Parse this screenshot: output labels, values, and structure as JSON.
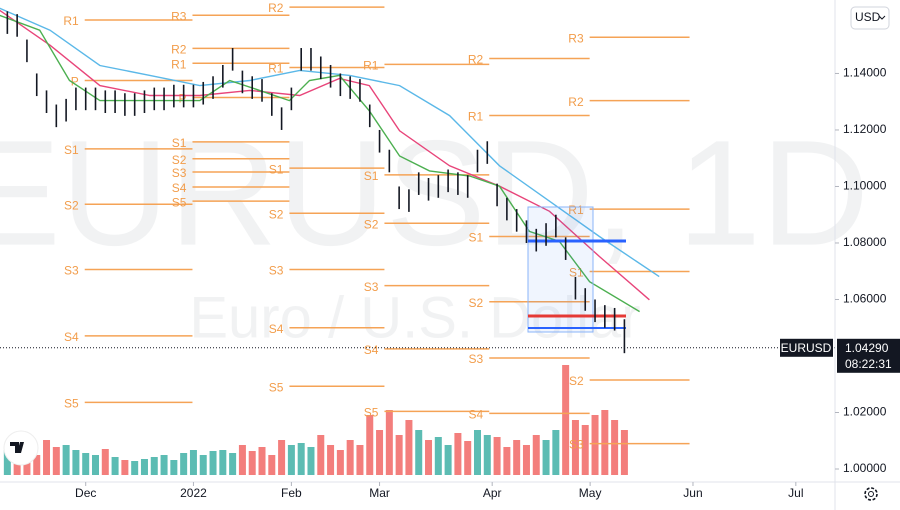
{
  "chart_data": {
    "type": "ohlc",
    "watermark": "EURUSD, 1D",
    "subtitle": "Euro / U.S. Dollar",
    "symbol": "EURUSD",
    "currency": "USD",
    "countdown": "08:22:31",
    "last_price": {
      "value": 1.0429,
      "label": "1.04290"
    },
    "bar_color": "#131722",
    "up_color": "#26a69a",
    "down_color": "#ef5350",
    "pivot_color": "#f5a356",
    "xlim": [
      -17.5,
      153
    ],
    "ylim": [
      0.9954,
      1.166
    ],
    "volume_lim": [
      0,
      120
    ],
    "xticks": [
      {
        "value": 0,
        "label": "Dec"
      },
      {
        "value": 22,
        "label": "2022"
      },
      {
        "value": 42,
        "label": "Feb"
      },
      {
        "value": 60,
        "label": "Mar"
      },
      {
        "value": 83,
        "label": "Apr"
      },
      {
        "value": 103,
        "label": "May"
      },
      {
        "value": 124,
        "label": "Jun"
      },
      {
        "value": 145,
        "label": "Jul"
      }
    ],
    "yticks": [
      {
        "value": 1.0,
        "label": "1.00000"
      },
      {
        "value": 1.02,
        "label": "1.02000"
      },
      {
        "value": 1.06,
        "label": "1.06000"
      },
      {
        "value": 1.08,
        "label": "1.08000"
      },
      {
        "value": 1.1,
        "label": "1.10000"
      },
      {
        "value": 1.12,
        "label": "1.12000"
      },
      {
        "value": 1.14,
        "label": "1.14000"
      }
    ],
    "x": [
      -16,
      -14,
      -12,
      -10,
      -8,
      -6,
      -4,
      -2,
      0,
      2,
      4,
      6,
      8,
      10,
      12,
      14,
      16,
      18,
      20,
      22,
      24,
      26,
      28,
      30,
      32,
      34,
      36,
      38,
      40,
      42,
      44,
      46,
      48,
      50,
      52,
      54,
      56,
      58,
      60,
      62,
      64,
      66,
      68,
      70,
      72,
      74,
      76,
      78,
      80,
      82,
      84,
      86,
      88,
      90,
      92,
      94,
      96,
      98,
      100,
      102,
      104,
      106,
      108,
      110
    ],
    "high": [
      1.162,
      1.161,
      1.152,
      1.14,
      1.134,
      1.129,
      1.131,
      1.135,
      1.135,
      1.135,
      1.134,
      1.134,
      1.133,
      1.133,
      1.134,
      1.135,
      1.135,
      1.136,
      1.136,
      1.136,
      1.137,
      1.139,
      1.143,
      1.149,
      1.141,
      1.139,
      1.138,
      1.133,
      1.128,
      1.135,
      1.149,
      1.149,
      1.146,
      1.143,
      1.14,
      1.139,
      1.138,
      1.129,
      1.12,
      1.113,
      1.1,
      1.099,
      1.105,
      1.103,
      1.104,
      1.106,
      1.105,
      1.104,
      1.113,
      1.116,
      1.101,
      1.096,
      1.092,
      1.088,
      1.085,
      1.087,
      1.09,
      1.082,
      1.068,
      1.064,
      1.06,
      1.058,
      1.057,
      1.053
    ],
    "low": [
      1.154,
      1.153,
      1.144,
      1.132,
      1.126,
      1.121,
      1.123,
      1.127,
      1.127,
      1.127,
      1.126,
      1.126,
      1.125,
      1.125,
      1.126,
      1.127,
      1.127,
      1.128,
      1.128,
      1.128,
      1.129,
      1.131,
      1.135,
      1.141,
      1.133,
      1.131,
      1.13,
      1.125,
      1.12,
      1.127,
      1.141,
      1.141,
      1.138,
      1.135,
      1.132,
      1.131,
      1.13,
      1.121,
      1.112,
      1.105,
      1.092,
      1.091,
      1.097,
      1.095,
      1.096,
      1.098,
      1.097,
      1.096,
      1.105,
      1.108,
      1.093,
      1.088,
      1.084,
      1.08,
      1.077,
      1.079,
      1.082,
      1.074,
      1.06,
      1.056,
      1.052,
      1.05,
      1.049,
      1.041
    ],
    "volume": [
      25,
      22,
      30,
      20,
      35,
      28,
      30,
      25,
      22,
      20,
      26,
      18,
      15,
      14,
      16,
      18,
      20,
      15,
      22,
      25,
      20,
      24,
      25,
      22,
      30,
      24,
      28,
      20,
      35,
      30,
      32,
      28,
      40,
      30,
      25,
      35,
      30,
      60,
      45,
      65,
      40,
      55,
      45,
      35,
      38,
      30,
      42,
      34,
      45,
      40,
      38,
      28,
      35,
      30,
      40,
      35,
      45,
      110,
      55,
      50,
      60,
      65,
      55,
      45
    ],
    "series": [
      {
        "color": "#5bb8e8",
        "x": [
          -17.6,
          -7.3,
          2.9,
          13.1,
          23.3,
          33.5,
          43.7,
          53.9,
          64.1,
          74.3,
          84.5,
          94.7,
          104.9,
          117.1
        ],
        "values": [
          1.1631,
          1.1553,
          1.1428,
          1.1393,
          1.1357,
          1.1375,
          1.1411,
          1.1393,
          1.1357,
          1.1251,
          1.1073,
          1.0948,
          1.0823,
          1.0681
        ]
      },
      {
        "color": "#e8457a",
        "x": [
          -17.6,
          -7.3,
          2.9,
          13.1,
          23.3,
          33.5,
          43.7,
          51.8,
          57.9,
          64.1,
          74.3,
          84.5,
          94.7,
          104.9,
          115.1
        ],
        "values": [
          1.1624,
          1.15,
          1.1357,
          1.1322,
          1.1322,
          1.134,
          1.1322,
          1.1382,
          1.1357,
          1.1197,
          1.1073,
          1.1001,
          1.0912,
          1.0752,
          1.0599
        ]
      },
      {
        "color": "#4caf50",
        "x": [
          -17.6,
          -9.4,
          -3.3,
          2.9,
          13.1,
          23.3,
          29.4,
          35.5,
          41.6,
          45.7,
          51.8,
          57.9,
          64.1,
          70.2,
          78.4,
          84.5,
          90.6,
          96.7,
          102.9,
          113.1
        ],
        "values": [
          1.1606,
          1.1553,
          1.1375,
          1.1304,
          1.1304,
          1.1304,
          1.1375,
          1.134,
          1.1304,
          1.1375,
          1.1393,
          1.1268,
          1.1108,
          1.1055,
          1.1037,
          1.1001,
          1.0841,
          1.0806,
          1.0663,
          1.0557
        ]
      }
    ],
    "pivots": [
      {
        "label": "R1",
        "value": 1.1589,
        "x0": -0.2,
        "x1": 21.8
      },
      {
        "label": "P",
        "value": 1.1375,
        "x0": -0.2,
        "x1": 21.8
      },
      {
        "label": "S1",
        "value": 1.1133,
        "x0": -0.2,
        "x1": 21.8
      },
      {
        "label": "S2",
        "value": 1.0937,
        "x0": -0.2,
        "x1": 21.8
      },
      {
        "label": "S3",
        "value": 1.0706,
        "x0": -0.2,
        "x1": 21.8
      },
      {
        "label": "S4",
        "value": 1.0471,
        "x0": -0.2,
        "x1": 21.8
      },
      {
        "label": "S5",
        "value": 1.0236,
        "x0": -0.2,
        "x1": 21.8
      },
      {
        "label": "R3",
        "value": 1.1606,
        "x0": 21.8,
        "x1": 41.6
      },
      {
        "label": "R2",
        "value": 1.1489,
        "x0": 21.8,
        "x1": 41.6
      },
      {
        "label": "R1",
        "value": 1.1436,
        "x0": 21.8,
        "x1": 41.6
      },
      {
        "label": "P",
        "value": 1.1315,
        "x0": 21.8,
        "x1": 41.6
      },
      {
        "label": "S1",
        "value": 1.1158,
        "x0": 21.8,
        "x1": 41.6
      },
      {
        "label": "S2",
        "value": 1.1098,
        "x0": 21.8,
        "x1": 41.6
      },
      {
        "label": "S3",
        "value": 1.1051,
        "x0": 21.8,
        "x1": 41.6
      },
      {
        "label": "S4",
        "value": 1.0998,
        "x0": 21.8,
        "x1": 41.6
      },
      {
        "label": "S5",
        "value": 1.0948,
        "x0": 21.8,
        "x1": 41.6
      },
      {
        "label": "R2",
        "value": 1.1635,
        "x0": 41.6,
        "x1": 61.0
      },
      {
        "label": "R1",
        "value": 1.1421,
        "x0": 41.6,
        "x1": 61.0
      },
      {
        "label": "S1",
        "value": 1.1065,
        "x0": 41.6,
        "x1": 61.0
      },
      {
        "label": "S2",
        "value": 1.0905,
        "x0": 41.6,
        "x1": 61.0
      },
      {
        "label": "S3",
        "value": 1.0706,
        "x0": 41.6,
        "x1": 61.0
      },
      {
        "label": "S4",
        "value": 1.05,
        "x0": 41.6,
        "x1": 61.0
      },
      {
        "label": "S5",
        "value": 1.0293,
        "x0": 41.6,
        "x1": 61.0
      },
      {
        "label": "R1",
        "value": 1.1432,
        "x0": 61.0,
        "x1": 82.4
      },
      {
        "label": "S1",
        "value": 1.1041,
        "x0": 61.0,
        "x1": 82.4
      },
      {
        "label": "S2",
        "value": 1.087,
        "x0": 61.0,
        "x1": 82.4
      },
      {
        "label": "S3",
        "value": 1.0649,
        "x0": 61.0,
        "x1": 82.4
      },
      {
        "label": "S4",
        "value": 1.0425,
        "x0": 61.0,
        "x1": 82.4
      },
      {
        "label": "S5",
        "value": 1.0204,
        "x0": 61.0,
        "x1": 82.4
      },
      {
        "label": "R2",
        "value": 1.1453,
        "x0": 82.4,
        "x1": 102.9
      },
      {
        "label": "R1",
        "value": 1.1251,
        "x0": 82.4,
        "x1": 102.9
      },
      {
        "label": "S1",
        "value": 1.0823,
        "x0": 82.4,
        "x1": 102.9
      },
      {
        "label": "S2",
        "value": 1.0592,
        "x0": 82.4,
        "x1": 102.9
      },
      {
        "label": "S3",
        "value": 1.0393,
        "x0": 82.4,
        "x1": 102.9
      },
      {
        "label": "S4",
        "value": 1.0197,
        "x0": 82.4,
        "x1": 102.9
      },
      {
        "label": "R3",
        "value": 1.1528,
        "x0": 102.9,
        "x1": 123.3
      },
      {
        "label": "R2",
        "value": 1.1304,
        "x0": 102.9,
        "x1": 123.3
      },
      {
        "label": "R1",
        "value": 1.092,
        "x0": 102.9,
        "x1": 123.3
      },
      {
        "label": "S1",
        "value": 1.0699,
        "x0": 102.9,
        "x1": 123.3
      },
      {
        "label": "S2",
        "value": 1.0315,
        "x0": 102.9,
        "x1": 123.3
      },
      {
        "label": "S3",
        "value": 1.009,
        "x0": 102.9,
        "x1": 123.3
      }
    ]
  }
}
